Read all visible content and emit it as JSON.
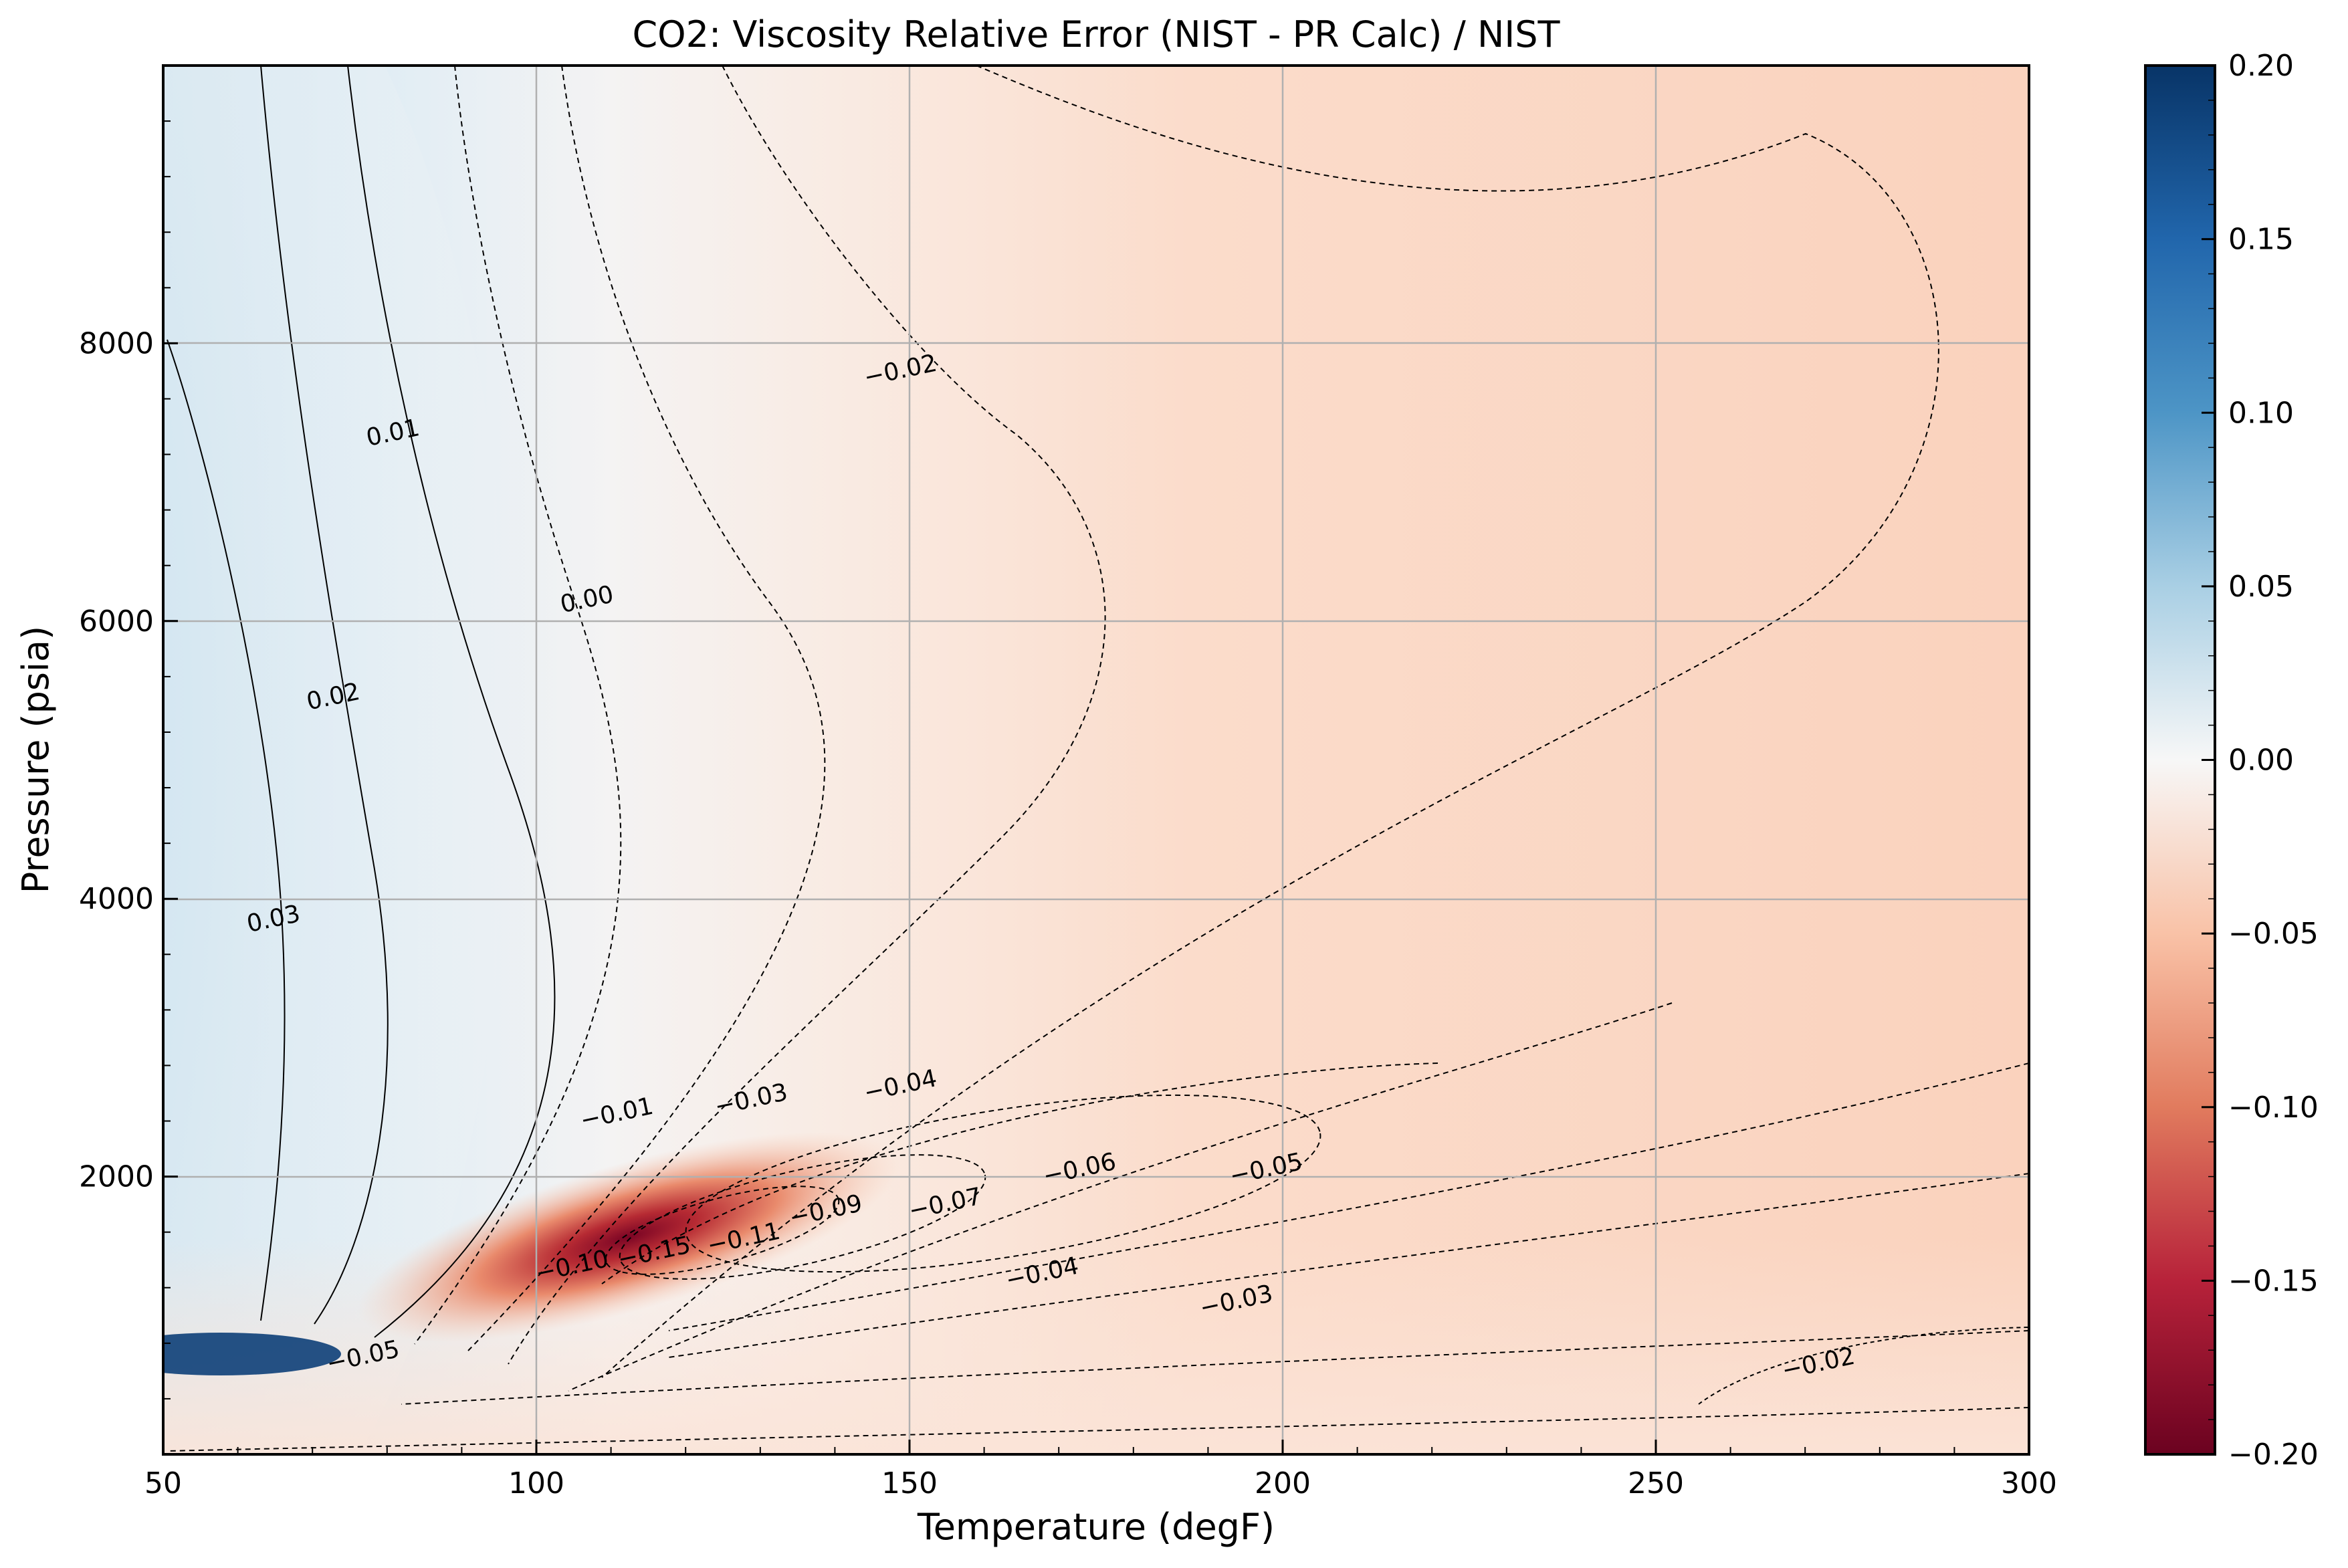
{
  "chart_data": {
    "type": "heatmap",
    "title": "CO2: Viscosity Relative Error (NIST - PR Calc) / NIST",
    "xlabel": "Temperature (degF)",
    "ylabel": "Pressure (psia)",
    "xlim": [
      50,
      300
    ],
    "ylim": [
      0,
      10000
    ],
    "x_ticks": [
      50,
      100,
      150,
      200,
      250,
      300
    ],
    "x_tick_labels": [
      "50",
      "100",
      "150",
      "200",
      "250",
      "300"
    ],
    "y_ticks": [
      2000,
      4000,
      6000,
      8000
    ],
    "y_tick_labels": [
      "2000",
      "4000",
      "6000",
      "8000"
    ],
    "grid": true,
    "colormap": "RdBu",
    "colorbar": {
      "range": [
        -0.2,
        0.2
      ],
      "ticks": [
        0.2,
        0.15,
        0.1,
        0.05,
        0.0,
        -0.05,
        -0.1,
        -0.15,
        -0.2
      ],
      "tick_labels": [
        "0.20",
        "0.15",
        "0.10",
        "0.05",
        "0.00",
        "−0.05",
        "−0.10",
        "−0.15",
        "−0.20"
      ]
    },
    "colors": {
      "max": "#083467",
      "high": "#2a6fb0",
      "mid_high": "#9ac8e0",
      "low_positive": "#d6e8f2",
      "zero": "#f7f7f7",
      "low_negative": "#fbdccb",
      "mid_low": "#f3a584",
      "low": "#c9413d",
      "min": "#6b0220"
    },
    "contour_labels": [
      {
        "text": "0.01",
        "x": 81,
        "y": 7300
      },
      {
        "text": "0.00",
        "x": 107,
        "y": 6100
      },
      {
        "text": "0.02",
        "x": 73,
        "y": 5400
      },
      {
        "text": "0.03",
        "x": 65,
        "y": 3800
      },
      {
        "text": "−0.02",
        "x": 149,
        "y": 7750
      },
      {
        "text": "−0.01",
        "x": 111,
        "y": 2400
      },
      {
        "text": "−0.03",
        "x": 129,
        "y": 2500
      },
      {
        "text": "−0.04",
        "x": 149,
        "y": 2600
      },
      {
        "text": "−0.06",
        "x": 173,
        "y": 2000
      },
      {
        "text": "−0.05",
        "x": 198,
        "y": 2000
      },
      {
        "text": "−0.07",
        "x": 155,
        "y": 1750
      },
      {
        "text": "−0.09",
        "x": 139,
        "y": 1700
      },
      {
        "text": "−0.11",
        "x": 128,
        "y": 1500
      },
      {
        "text": "−0.15",
        "x": 116,
        "y": 1400
      },
      {
        "text": "−0.10",
        "x": 105,
        "y": 1300
      },
      {
        "text": "−0.04",
        "x": 168,
        "y": 1250
      },
      {
        "text": "−0.03",
        "x": 194,
        "y": 1050
      },
      {
        "text": "−0.05",
        "x": 77,
        "y": 650
      },
      {
        "text": "−0.02",
        "x": 272,
        "y": 600
      }
    ]
  }
}
